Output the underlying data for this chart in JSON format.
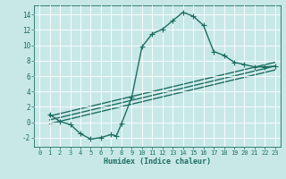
{
  "title": "",
  "xlabel": "Humidex (Indice chaleur)",
  "bg_color": "#c8e8e8",
  "line_color": "#1e6e62",
  "grid_color": "#ffffff",
  "xlim": [
    -0.5,
    23.5
  ],
  "ylim": [
    -3.2,
    15.2
  ],
  "xticks": [
    0,
    1,
    2,
    3,
    4,
    5,
    6,
    7,
    8,
    9,
    10,
    11,
    12,
    13,
    14,
    15,
    16,
    17,
    18,
    19,
    20,
    21,
    22,
    23
  ],
  "yticks": [
    -2,
    0,
    2,
    4,
    6,
    8,
    10,
    12,
    14
  ],
  "series1_x": [
    1,
    2,
    3,
    4,
    5,
    6,
    7,
    7.5,
    8,
    9,
    10,
    11,
    12,
    13,
    14,
    15,
    16,
    17,
    18,
    19,
    20,
    21,
    22,
    23
  ],
  "series1_y": [
    1.0,
    0.1,
    -0.3,
    -1.5,
    -2.2,
    -2.0,
    -1.6,
    -1.8,
    -0.2,
    3.2,
    9.8,
    11.5,
    12.1,
    13.2,
    14.3,
    13.8,
    12.6,
    9.2,
    8.7,
    7.8,
    7.5,
    7.2,
    7.2,
    7.3
  ],
  "trend1_x": [
    1,
    23
  ],
  "trend1_y": [
    0.8,
    7.8
  ],
  "trend2_x": [
    1,
    23
  ],
  "trend2_y": [
    0.3,
    7.3
  ],
  "trend3_x": [
    1,
    23
  ],
  "trend3_y": [
    -0.2,
    6.8
  ],
  "marker": "+",
  "markersize": 4,
  "linewidth": 1.0
}
